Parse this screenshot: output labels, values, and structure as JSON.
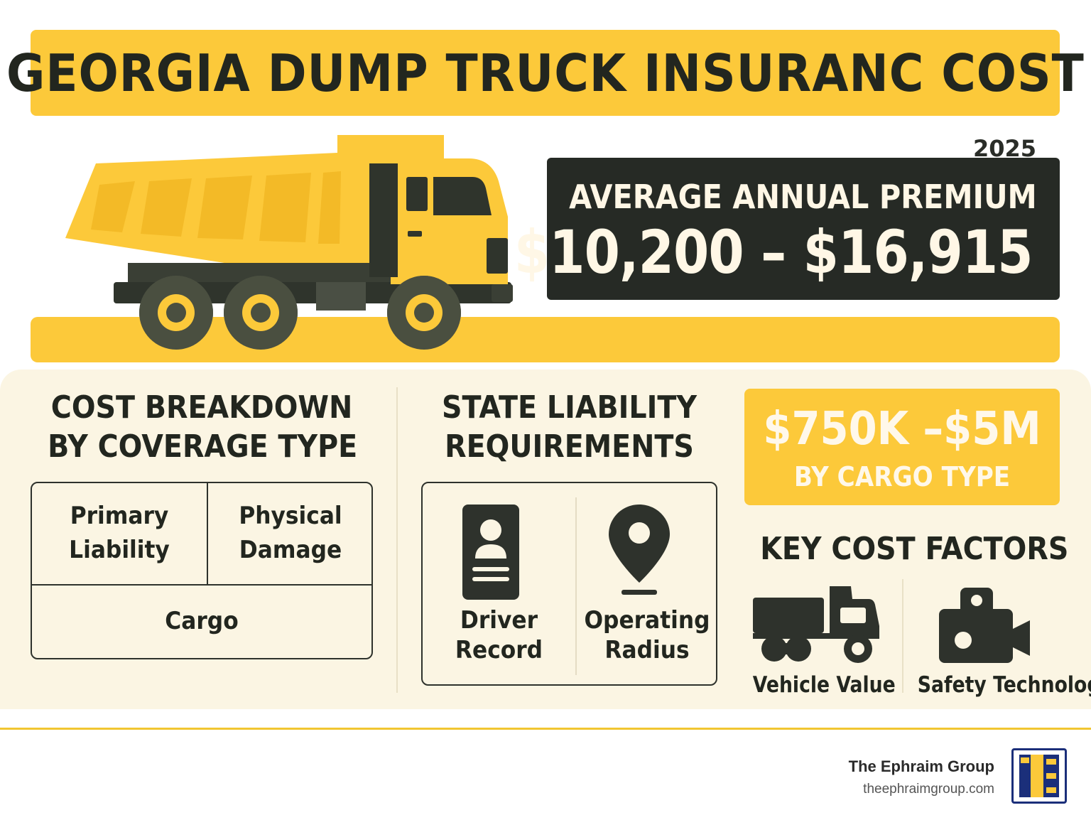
{
  "header": {
    "title": "GEORGIA DUMP TRUCK INSURANC COST"
  },
  "premium": {
    "year": "2025",
    "label": "AVERAGE ANNUAL PREMIUM",
    "value": "$10,200 – $16,915"
  },
  "coverage": {
    "title_line1": "COST BREAKDOWN",
    "title_line2": "BY COVERAGE TYPE",
    "cells": {
      "primary_liability_1": "Primary",
      "primary_liability_2": "Liability",
      "physical_damage_1": "Physical",
      "physical_damage_2": "Damage",
      "cargo": "Cargo"
    }
  },
  "requirements": {
    "title_line1": "STATE LIABILITY",
    "title_line2": "REQUIREMENTS",
    "driver_record_1": "Driver",
    "driver_record_2": "Record",
    "operating_radius_1": "Operating",
    "operating_radius_2": "Radius"
  },
  "cargo_limits": {
    "value": "$750K –$5M",
    "label": "BY CARGO TYPE"
  },
  "factors": {
    "title": "KEY COST FACTORS",
    "vehicle_value": "Vehicle Value",
    "safety_technology": "Safety Technology"
  },
  "brand": {
    "name": "The Ephraim Group",
    "url": "theephraimgroup.com"
  },
  "colors": {
    "accent_yellow": "#fcc93a",
    "dark": "#262a25",
    "cream": "#fbf5e3"
  }
}
